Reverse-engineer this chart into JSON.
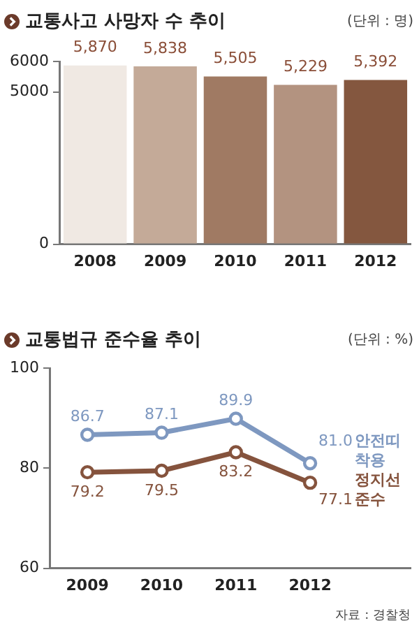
{
  "chart_data": [
    {
      "type": "bar",
      "title": "교통사고 사망자 수 추이",
      "subtitle": "(단위 : 명)",
      "categories": [
        "2008",
        "2009",
        "2010",
        "2011",
        "2012"
      ],
      "values": [
        5870,
        5838,
        5505,
        5229,
        5392
      ],
      "colors": [
        "#f0e9e3",
        "#c4aa98",
        "#a07a63",
        "#b39380",
        "#84573f"
      ],
      "value_labels": [
        "5,870",
        "5,838",
        "5,505",
        "5,229",
        "5,392"
      ],
      "ylim": [
        0,
        6000
      ],
      "yticks": [
        0,
        5000,
        6000
      ],
      "grid": false,
      "legend": false
    },
    {
      "type": "line",
      "title": "교통법규 준수율 추이",
      "subtitle": "(단위 : %)",
      "categories": [
        "2009",
        "2010",
        "2011",
        "2012"
      ],
      "series": [
        {
          "name": "안전띠 착용",
          "color": "#7e98c0",
          "values": [
            86.7,
            87.1,
            89.9,
            81.0
          ],
          "value_labels": [
            "86.7",
            "87.1",
            "89.9",
            "81.0"
          ]
        },
        {
          "name": "정지선 준수",
          "color": "#85533d",
          "values": [
            79.2,
            79.5,
            83.2,
            77.1
          ],
          "value_labels": [
            "79.2",
            "79.5",
            "83.2",
            "77.1"
          ]
        }
      ],
      "ylim": [
        60,
        100
      ],
      "yticks": [
        60,
        80,
        100
      ],
      "grid": false,
      "legend": false,
      "marker": "circle",
      "line_style": "solid",
      "annotations": [
        "자료 : 경찰청"
      ]
    }
  ]
}
